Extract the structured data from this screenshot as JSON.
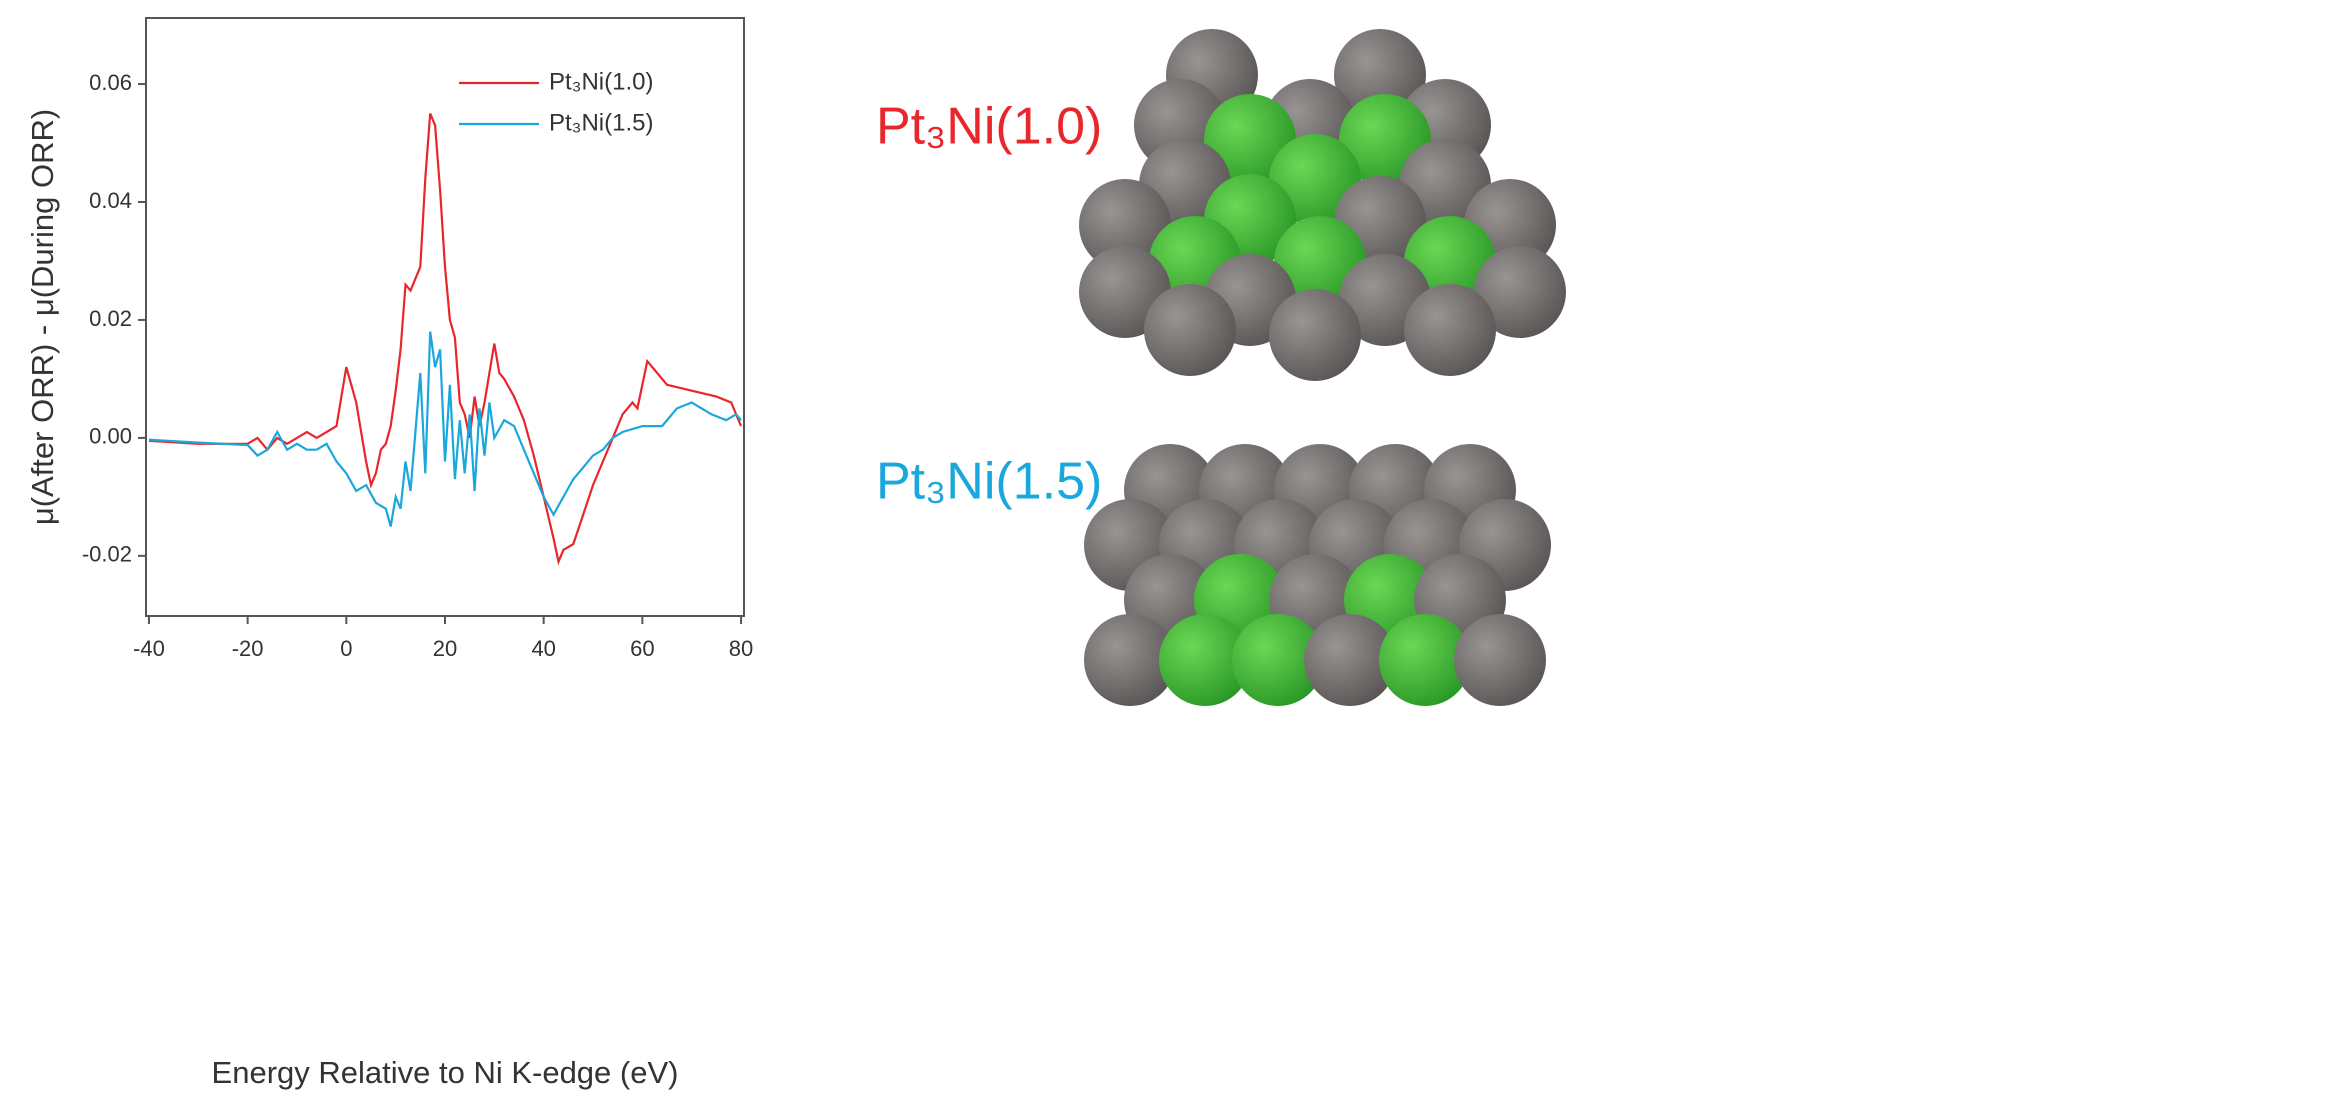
{
  "chart_data": {
    "type": "line",
    "x_label": "Energy Relative to Ni K-edge (eV)",
    "y_label": "μ(After ORR) - μ(During ORR)",
    "xlim": [
      -40.6,
      80.6
    ],
    "ylim": [
      -0.0302,
      0.0712
    ],
    "xticks": [
      -40,
      -20,
      0,
      20,
      40,
      60,
      80
    ],
    "yticks": [
      -0.02,
      {
        "value": 0,
        "label": "0.00"
      },
      0.02,
      0.04,
      0.06
    ],
    "legend": "upper right",
    "series": [
      {
        "name": "Pt₃Ni(1.0)",
        "color": "#e8262b",
        "x": [
          -40,
          -30,
          -20,
          -18,
          -16,
          -14,
          -12,
          -10,
          -8,
          -6,
          -4,
          -2,
          0,
          2,
          4,
          5,
          6,
          7,
          8,
          9,
          10,
          11,
          12,
          13,
          14,
          15,
          16,
          17,
          18,
          19,
          20,
          21,
          22,
          23,
          24,
          25,
          26,
          27,
          28,
          29,
          30,
          31,
          32,
          34,
          36,
          38,
          40,
          42,
          43,
          44,
          46,
          48,
          50,
          52,
          54,
          56,
          58,
          59,
          61,
          63,
          65,
          70,
          75,
          78,
          80
        ],
        "values": [
          -0.0005,
          -0.001,
          -0.001,
          0.0,
          -0.002,
          0.0,
          -0.001,
          0.0,
          0.001,
          0.0,
          0.001,
          0.002,
          0.012,
          0.006,
          -0.004,
          -0.008,
          -0.006,
          -0.002,
          -0.001,
          0.002,
          0.008,
          0.015,
          0.026,
          0.025,
          0.027,
          0.029,
          0.044,
          0.055,
          0.053,
          0.042,
          0.029,
          0.02,
          0.017,
          0.006,
          0.004,
          0.0,
          0.007,
          0.002,
          0.006,
          0.011,
          0.016,
          0.011,
          0.01,
          0.007,
          0.003,
          -0.003,
          -0.01,
          -0.017,
          -0.021,
          -0.019,
          -0.018,
          -0.013,
          -0.008,
          -0.004,
          0.0,
          0.004,
          0.006,
          0.005,
          0.013,
          0.011,
          0.009,
          0.008,
          0.007,
          0.006,
          0.002
        ]
      },
      {
        "name": "Pt₃Ni(1.5)",
        "color": "#1aa7dc",
        "x": [
          -40,
          -30,
          -20,
          -18,
          -16,
          -14,
          -12,
          -10,
          -8,
          -6,
          -4,
          -2,
          0,
          2,
          4,
          6,
          8,
          9,
          10,
          11,
          12,
          13,
          14,
          15,
          16,
          17,
          18,
          19,
          20,
          21,
          22,
          23,
          24,
          25,
          26,
          27,
          28,
          29,
          30,
          32,
          34,
          36,
          38,
          40,
          42,
          44,
          46,
          48,
          50,
          52,
          54,
          56,
          60,
          64,
          67,
          70,
          74,
          77,
          79,
          80
        ],
        "values": [
          -0.0003,
          -0.0008,
          -0.0012,
          -0.003,
          -0.002,
          0.001,
          -0.002,
          -0.001,
          -0.002,
          -0.002,
          -0.001,
          -0.004,
          -0.006,
          -0.009,
          -0.008,
          -0.011,
          -0.012,
          -0.015,
          -0.01,
          -0.012,
          -0.004,
          -0.009,
          0.001,
          0.011,
          -0.006,
          0.018,
          0.012,
          0.015,
          -0.004,
          0.009,
          -0.007,
          0.003,
          -0.006,
          0.004,
          -0.009,
          0.005,
          -0.003,
          0.006,
          0.0,
          0.003,
          0.002,
          -0.002,
          -0.006,
          -0.01,
          -0.013,
          -0.01,
          -0.007,
          -0.005,
          -0.003,
          -0.002,
          0.0,
          0.001,
          0.002,
          0.002,
          0.005,
          0.006,
          0.004,
          0.003,
          0.004,
          0.003
        ]
      }
    ]
  },
  "diagram": {
    "labels": [
      "Pt₃Ni(1.0)",
      "Pt₃Ni(1.5)"
    ]
  }
}
